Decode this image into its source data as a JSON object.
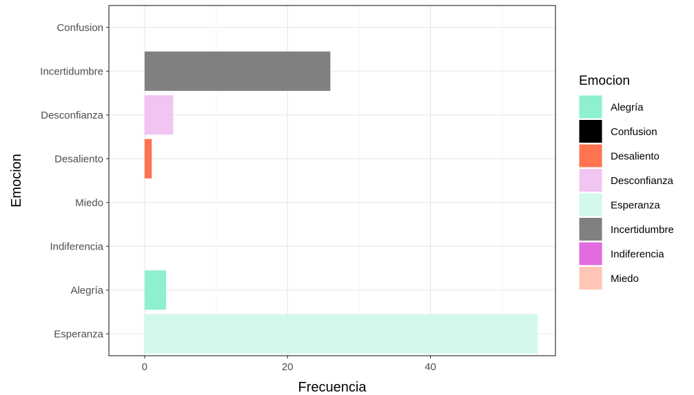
{
  "chart_data": {
    "type": "bar",
    "orientation": "horizontal",
    "title": "",
    "xlabel": "Frecuencia",
    "ylabel": "Emocion",
    "xlim": [
      -5,
      57.5
    ],
    "x_ticks": [
      0,
      20,
      40
    ],
    "grid": true,
    "categories": [
      "Esperanza",
      "Alegría",
      "Indiferencia",
      "Miedo",
      "Desaliento",
      "Desconfianza",
      "Incertidumbre",
      "Confusion"
    ],
    "values": [
      55,
      3,
      0,
      0,
      1,
      4,
      26,
      0
    ],
    "legend": {
      "title": "Emocion",
      "placement": "right",
      "entries": [
        {
          "name": "Alegría",
          "color": "#8EF0D0"
        },
        {
          "name": "Confusion",
          "color": "#000000"
        },
        {
          "name": "Desaliento",
          "color": "#FF7350"
        },
        {
          "name": "Desconfianza",
          "color": "#F2C4F2"
        },
        {
          "name": "Esperanza",
          "color": "#D3F8EE"
        },
        {
          "name": "Incertidumbre",
          "color": "#808080"
        },
        {
          "name": "Indiferencia",
          "color": "#E26BE0"
        },
        {
          "name": "Miedo",
          "color": "#FFC6B6"
        }
      ]
    }
  }
}
